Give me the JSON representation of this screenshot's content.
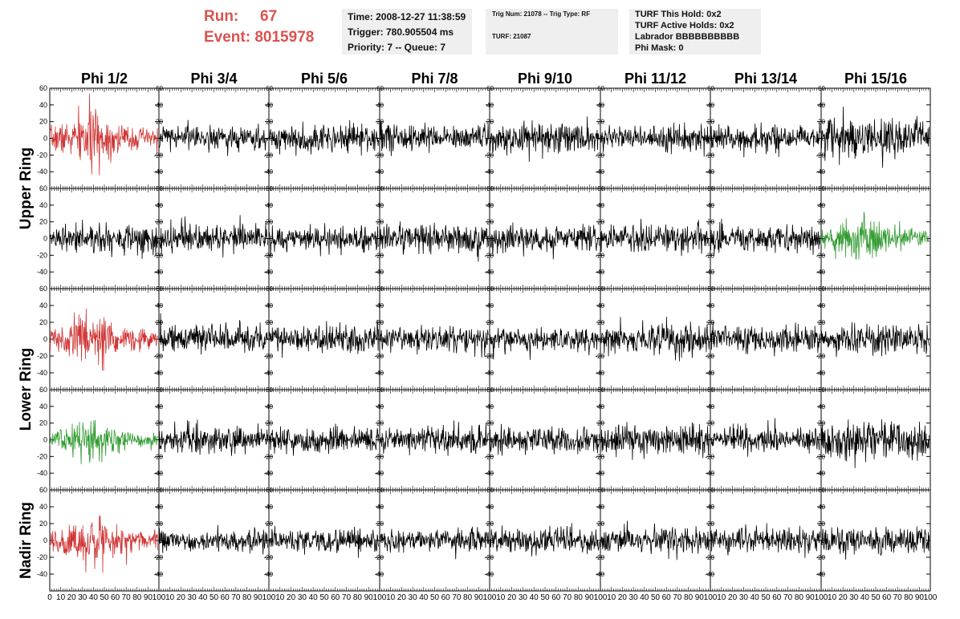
{
  "header": {
    "run_label": "Run:",
    "run_value": "67",
    "event_label": "Event:",
    "event_value": "8015978",
    "time": "Time: 2008-12-27 11:38:59",
    "trigger": "Trigger: 780.905504 ms",
    "priority": "Priority: 7 -- Queue: 7",
    "trig_num": "Trig Num: 21078 -- Trig Type: RF",
    "turf": "TURF: 21087",
    "turf_this_hold": "TURF This Hold: 0x2",
    "turf_active_holds": "TURF Active Holds: 0x2",
    "labrador": "Labrador BBBBBBBBBB",
    "phi_mask": "Phi Mask: 0"
  },
  "colors": {
    "trace": "#000000",
    "red": "#d03535",
    "green": "#2e9a2e",
    "header_red": "#d9534f"
  },
  "chart_data": {
    "type": "line",
    "columns": [
      "Phi 1/2",
      "Phi 3/4",
      "Phi 5/6",
      "Phi 7/8",
      "Phi 9/10",
      "Phi 11/12",
      "Phi 13/14",
      "Phi 15/16"
    ],
    "rows": [
      "Upper Ring",
      "Upper Ring",
      "Lower Ring",
      "Lower Ring",
      "Nadir Ring"
    ],
    "row_labels": [
      "Upper Ring",
      "Lower Ring",
      "Nadir Ring"
    ],
    "ylim": [
      -60,
      60
    ],
    "yticks": [
      -40,
      -20,
      0,
      20,
      40,
      60
    ],
    "xlim": [
      0,
      100
    ],
    "xticks": [
      0,
      10,
      20,
      30,
      40,
      50,
      60,
      70,
      80,
      90,
      100
    ],
    "samples": 256,
    "highlighted": [
      {
        "row": 0,
        "col": 0,
        "color": "red"
      },
      {
        "row": 1,
        "col": 7,
        "color": "green"
      },
      {
        "row": 2,
        "col": 0,
        "color": "red"
      },
      {
        "row": 3,
        "col": 0,
        "color": "green"
      },
      {
        "row": 4,
        "col": 0,
        "color": "red"
      }
    ],
    "amplitudes": [
      [
        26,
        13,
        15,
        14,
        16,
        13,
        14,
        21
      ],
      [
        14,
        15,
        13,
        15,
        14,
        14,
        14,
        22
      ],
      [
        24,
        14,
        14,
        13,
        14,
        15,
        14,
        15
      ],
      [
        19,
        15,
        14,
        14,
        14,
        16,
        13,
        19
      ],
      [
        24,
        11,
        13,
        13,
        14,
        14,
        14,
        15
      ]
    ]
  }
}
